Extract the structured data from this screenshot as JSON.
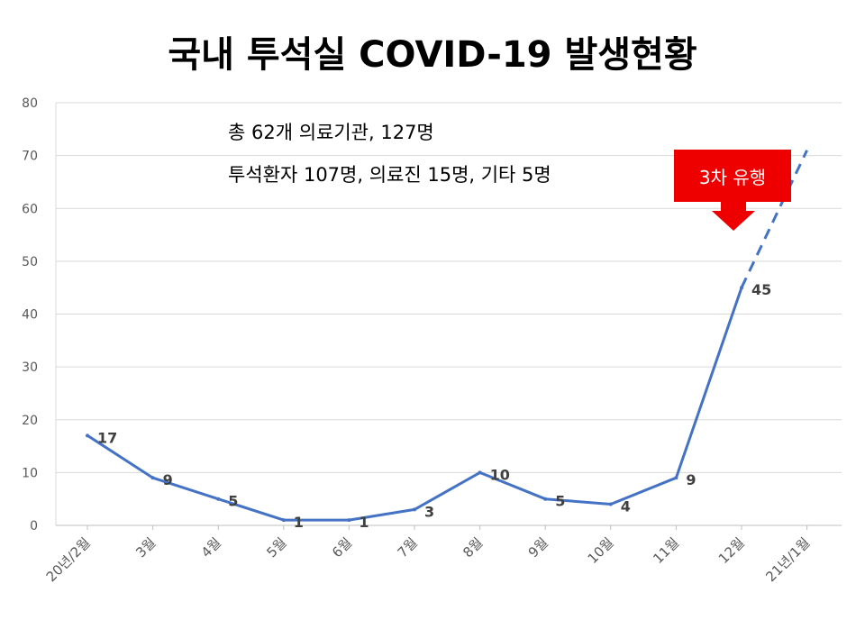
{
  "chart_data": {
    "type": "line",
    "title": "국내 투석실 COVID-19 발생현황",
    "categories": [
      "20년/2월",
      "3월",
      "4월",
      "5월",
      "6월",
      "7월",
      "8월",
      "9월",
      "10월",
      "11월",
      "12월",
      "21년/1월"
    ],
    "series": [
      {
        "values": [
          17,
          9,
          5,
          1,
          1,
          3,
          10,
          5,
          4,
          9,
          45,
          null
        ],
        "labels": [
          "17",
          "9",
          "5",
          "1",
          "1",
          "3",
          "10",
          "5",
          "4",
          "9",
          "45",
          ""
        ],
        "color": "#4472c4"
      }
    ],
    "projection": {
      "from_category": "12월",
      "from_value": 45,
      "to_category": "21년/1월",
      "to_value": 71,
      "style": "dashed"
    },
    "ylim": [
      0,
      80
    ],
    "yticks": [
      "0",
      "10",
      "20",
      "30",
      "40",
      "50",
      "60",
      "70",
      "80"
    ],
    "grid": true,
    "annotations": {
      "note_line1": "총 62개 의료기관, 127명",
      "note_line2": "투석환자 107명, 의료진 15명, 기타 5명",
      "callout": "3차 유행",
      "callout_color": "#ee0000"
    }
  }
}
